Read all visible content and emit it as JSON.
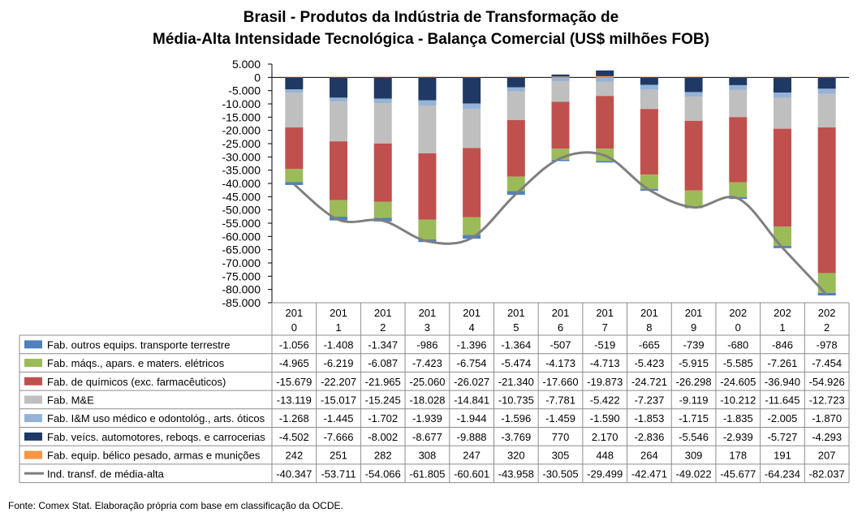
{
  "title_line1": "Brasil - Produtos da Indústria de Transformação de",
  "title_line2": "Média-Alta Intensidade Tecnológica - Balança Comercial (US$ milhões FOB)",
  "source": "Fonte: Comex Stat. Elaboração própria com base em classificação da OCDE.",
  "chart_data": {
    "type": "bar",
    "stacked": true,
    "ylim": [
      -85000,
      5000
    ],
    "y_ticks": [
      5000,
      0,
      -5000,
      -10000,
      -15000,
      -20000,
      -25000,
      -30000,
      -35000,
      -40000,
      -45000,
      -50000,
      -55000,
      -60000,
      -65000,
      -70000,
      -75000,
      -80000,
      -85000
    ],
    "y_tick_labels": [
      "5.000",
      "0",
      "-5.000",
      "-10.000",
      "-15.000",
      "-20.000",
      "-25.000",
      "-30.000",
      "-35.000",
      "-40.000",
      "-45.000",
      "-50.000",
      "-55.000",
      "-60.000",
      "-65.000",
      "-70.000",
      "-75.000",
      "-80.000",
      "-85.000"
    ],
    "category_labels": [
      [
        "201",
        "0"
      ],
      [
        "201",
        "1"
      ],
      [
        "201",
        "2"
      ],
      [
        "201",
        "3"
      ],
      [
        "201",
        "4"
      ],
      [
        "201",
        "5"
      ],
      [
        "201",
        "6"
      ],
      [
        "201",
        "7"
      ],
      [
        "201",
        "8"
      ],
      [
        "201",
        "9"
      ],
      [
        "202",
        "0"
      ],
      [
        "202",
        "1"
      ],
      [
        "202",
        "2"
      ]
    ],
    "series": [
      {
        "name": "Fab. outros equips. transporte terrestre",
        "color": "#4f81bd",
        "kind": "bar",
        "values": [
          -1056,
          -1408,
          -1347,
          -986,
          -1396,
          -1364,
          -507,
          -519,
          -665,
          -739,
          -680,
          -846,
          -978
        ],
        "labels": [
          "-1.056",
          "-1.408",
          "-1.347",
          "-986",
          "-1.396",
          "-1.364",
          "-507",
          "-519",
          "-665",
          "-739",
          "-680",
          "-846",
          "-978"
        ]
      },
      {
        "name": "Fab. máqs., apars. e maters. elétricos",
        "color": "#9bbb59",
        "kind": "bar",
        "values": [
          -4965,
          -6219,
          -6087,
          -7423,
          -6754,
          -5474,
          -4173,
          -4713,
          -5423,
          -5915,
          -5585,
          -7261,
          -7454
        ],
        "labels": [
          "-4.965",
          "-6.219",
          "-6.087",
          "-7.423",
          "-6.754",
          "-5.474",
          "-4.173",
          "-4.713",
          "-5.423",
          "-5.915",
          "-5.585",
          "-7.261",
          "-7.454"
        ]
      },
      {
        "name": "Fab. de químicos (exc. farmacêuticos)",
        "color": "#c0504d",
        "kind": "bar",
        "values": [
          -15679,
          -22207,
          -21965,
          -25060,
          -26027,
          -21340,
          -17660,
          -19873,
          -24721,
          -26298,
          -24605,
          -36940,
          -54926
        ],
        "labels": [
          "-15.679",
          "-22.207",
          "-21.965",
          "-25.060",
          "-26.027",
          "-21.340",
          "-17.660",
          "-19.873",
          "-24.721",
          "-26.298",
          "-24.605",
          "-36.940",
          "-54.926"
        ]
      },
      {
        "name": "Fab. M&E",
        "color": "#bfbfbf",
        "kind": "bar",
        "values": [
          -13119,
          -15017,
          -15245,
          -18028,
          -14841,
          -10735,
          -7781,
          -5422,
          -7237,
          -9119,
          -10212,
          -11645,
          -12723
        ],
        "labels": [
          "-13.119",
          "-15.017",
          "-15.245",
          "-18.028",
          "-14.841",
          "-10.735",
          "-7.781",
          "-5.422",
          "-7.237",
          "-9.119",
          "-10.212",
          "-11.645",
          "-12.723"
        ]
      },
      {
        "name": "Fab. I&M uso médico e odontológ., arts. óticos",
        "color": "#95b3d7",
        "kind": "bar",
        "values": [
          -1268,
          -1445,
          -1702,
          -1939,
          -1944,
          -1596,
          -1459,
          -1590,
          -1853,
          -1715,
          -1835,
          -2005,
          -1870
        ],
        "labels": [
          "-1.268",
          "-1.445",
          "-1.702",
          "-1.939",
          "-1.944",
          "-1.596",
          "-1.459",
          "-1.590",
          "-1.853",
          "-1.715",
          "-1.835",
          "-2.005",
          "-1.870"
        ]
      },
      {
        "name": "Fab. veícs. automotores, reboqs. e carrocerias",
        "color": "#1f3864",
        "kind": "bar",
        "values": [
          -4502,
          -7666,
          -8002,
          -8677,
          -9888,
          -3769,
          770,
          2170,
          -2836,
          -5546,
          -2939,
          -5727,
          -4293
        ],
        "labels": [
          "-4.502",
          "-7.666",
          "-8.002",
          "-8.677",
          "-9.888",
          "-3.769",
          "770",
          "2.170",
          "-2.836",
          "-5.546",
          "-2.939",
          "-5.727",
          "-4.293"
        ]
      },
      {
        "name": "Fab. equip. bélico pesado, armas e munições",
        "color": "#f79646",
        "kind": "bar",
        "values": [
          242,
          251,
          282,
          308,
          247,
          320,
          305,
          448,
          264,
          309,
          178,
          191,
          207
        ],
        "labels": [
          "242",
          "251",
          "282",
          "308",
          "247",
          "320",
          "305",
          "448",
          "264",
          "309",
          "178",
          "191",
          "207"
        ]
      },
      {
        "name": "Ind. transf. de média-alta",
        "color": "#7f7f7f",
        "kind": "line",
        "values": [
          -40347,
          -53711,
          -54066,
          -61805,
          -60601,
          -43958,
          -30505,
          -29499,
          -42471,
          -49022,
          -45677,
          -64234,
          -82037
        ],
        "labels": [
          "-40.347",
          "-53.711",
          "-54.066",
          "-61.805",
          "-60.601",
          "-43.958",
          "-30.505",
          "-29.499",
          "-42.471",
          "-49.022",
          "-45.677",
          "-64.234",
          "-82.037"
        ]
      }
    ],
    "stack_order": [
      6,
      5,
      4,
      3,
      2,
      1,
      0
    ],
    "legend_placement": "table-left",
    "grid": false
  }
}
